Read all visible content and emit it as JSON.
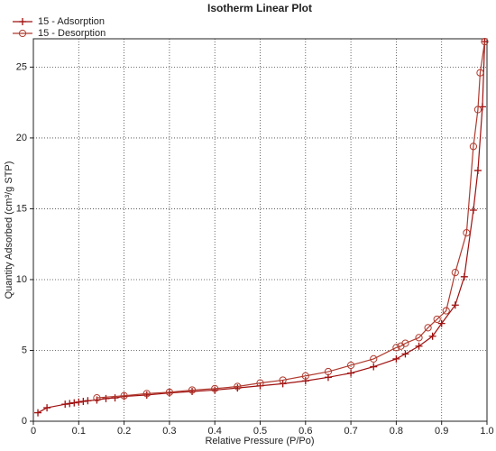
{
  "chart_data": {
    "type": "line",
    "title": "Isotherm Linear Plot",
    "x_label": "Relative Pressure (P/Po)",
    "y_label": "Quantity Adsorbed (cm³/g STP)",
    "xlim": [
      0,
      1
    ],
    "ylim": [
      0,
      27
    ],
    "xticks": [
      0,
      0.1,
      0.2,
      0.3,
      0.4,
      0.5,
      0.6,
      0.7,
      0.8,
      0.9,
      {
        "value": 1,
        "label": "1.0"
      }
    ],
    "yticks": [
      0,
      5,
      10,
      15,
      20,
      25
    ],
    "grid": true,
    "legend": "top-left",
    "series": [
      {
        "name": "15 - Adsorption",
        "color": "#a01010",
        "marker": "plus",
        "x": [
          0.01,
          0.03,
          0.07,
          0.08,
          0.09,
          0.1,
          0.11,
          0.12,
          0.14,
          0.16,
          0.18,
          0.2,
          0.25,
          0.3,
          0.35,
          0.4,
          0.45,
          0.5,
          0.55,
          0.6,
          0.65,
          0.7,
          0.75,
          0.8,
          0.82,
          0.85,
          0.88,
          0.9,
          0.93,
          0.95,
          0.97,
          0.98,
          0.99,
          0.995
        ],
        "values": [
          0.6,
          0.95,
          1.2,
          1.25,
          1.3,
          1.35,
          1.4,
          1.45,
          1.5,
          1.6,
          1.65,
          1.75,
          1.85,
          2.0,
          2.1,
          2.2,
          2.35,
          2.5,
          2.65,
          2.85,
          3.1,
          3.4,
          3.85,
          4.4,
          4.75,
          5.3,
          6.0,
          6.9,
          8.2,
          10.2,
          14.9,
          17.7,
          22.2,
          26.8
        ]
      },
      {
        "name": "15 - Desorption",
        "color": "#b03a2e",
        "marker": "circle",
        "x": [
          0.995,
          0.985,
          0.98,
          0.97,
          0.955,
          0.93,
          0.91,
          0.89,
          0.87,
          0.85,
          0.82,
          0.81,
          0.8,
          0.75,
          0.7,
          0.65,
          0.6,
          0.55,
          0.5,
          0.45,
          0.4,
          0.35,
          0.3,
          0.25,
          0.2,
          0.14
        ],
        "values": [
          26.8,
          24.6,
          22.0,
          19.4,
          13.3,
          10.5,
          7.8,
          7.2,
          6.6,
          5.9,
          5.5,
          5.3,
          5.2,
          4.4,
          3.95,
          3.5,
          3.2,
          2.9,
          2.7,
          2.45,
          2.3,
          2.2,
          2.05,
          1.95,
          1.8,
          1.65
        ]
      }
    ]
  }
}
